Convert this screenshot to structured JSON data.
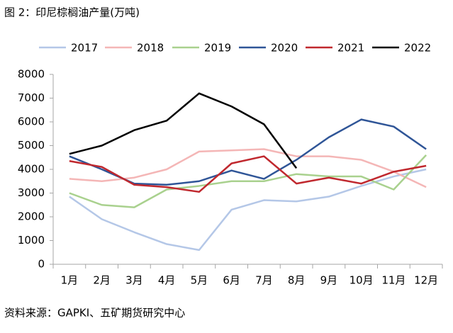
{
  "chart_data": {
    "type": "line",
    "title": "图 2：印尼棕榈油产量(万吨)",
    "source": "资料来源：GAPKI、五矿期货研究中心",
    "categories": [
      "1月",
      "2月",
      "3月",
      "4月",
      "5月",
      "6月",
      "7月",
      "8月",
      "9月",
      "10月",
      "11月",
      "12月"
    ],
    "series": [
      {
        "name": "2017",
        "color": "#b4c7e7",
        "values": [
          2850,
          1900,
          1350,
          850,
          600,
          2300,
          2700,
          2650,
          2850,
          3300,
          3700,
          4000
        ]
      },
      {
        "name": "2018",
        "color": "#f4b6b6",
        "values": [
          3600,
          3500,
          3650,
          4000,
          4750,
          4800,
          4850,
          4550,
          4550,
          4400,
          3900,
          3250
        ]
      },
      {
        "name": "2019",
        "color": "#a9d18e",
        "values": [
          3000,
          2500,
          2400,
          3150,
          3300,
          3500,
          3500,
          3800,
          3700,
          3700,
          3150,
          4600
        ]
      },
      {
        "name": "2020",
        "color": "#2f5597",
        "values": [
          4550,
          4000,
          3400,
          3350,
          3500,
          3950,
          3600,
          4400,
          5350,
          6100,
          5800,
          4850
        ]
      },
      {
        "name": "2021",
        "color": "#c0282e",
        "values": [
          4350,
          4100,
          3350,
          3250,
          3050,
          4250,
          4550,
          3400,
          3650,
          3400,
          3900,
          4150
        ]
      },
      {
        "name": "2022",
        "color": "#000000",
        "values": [
          4650,
          5000,
          5650,
          6050,
          7200,
          6650,
          5900,
          4050,
          null,
          null,
          null,
          null
        ]
      }
    ],
    "ylim": [
      0,
      8000
    ],
    "yticks": [
      0,
      1000,
      2000,
      3000,
      4000,
      5000,
      6000,
      7000,
      8000
    ],
    "grid": false,
    "legend": "top"
  }
}
